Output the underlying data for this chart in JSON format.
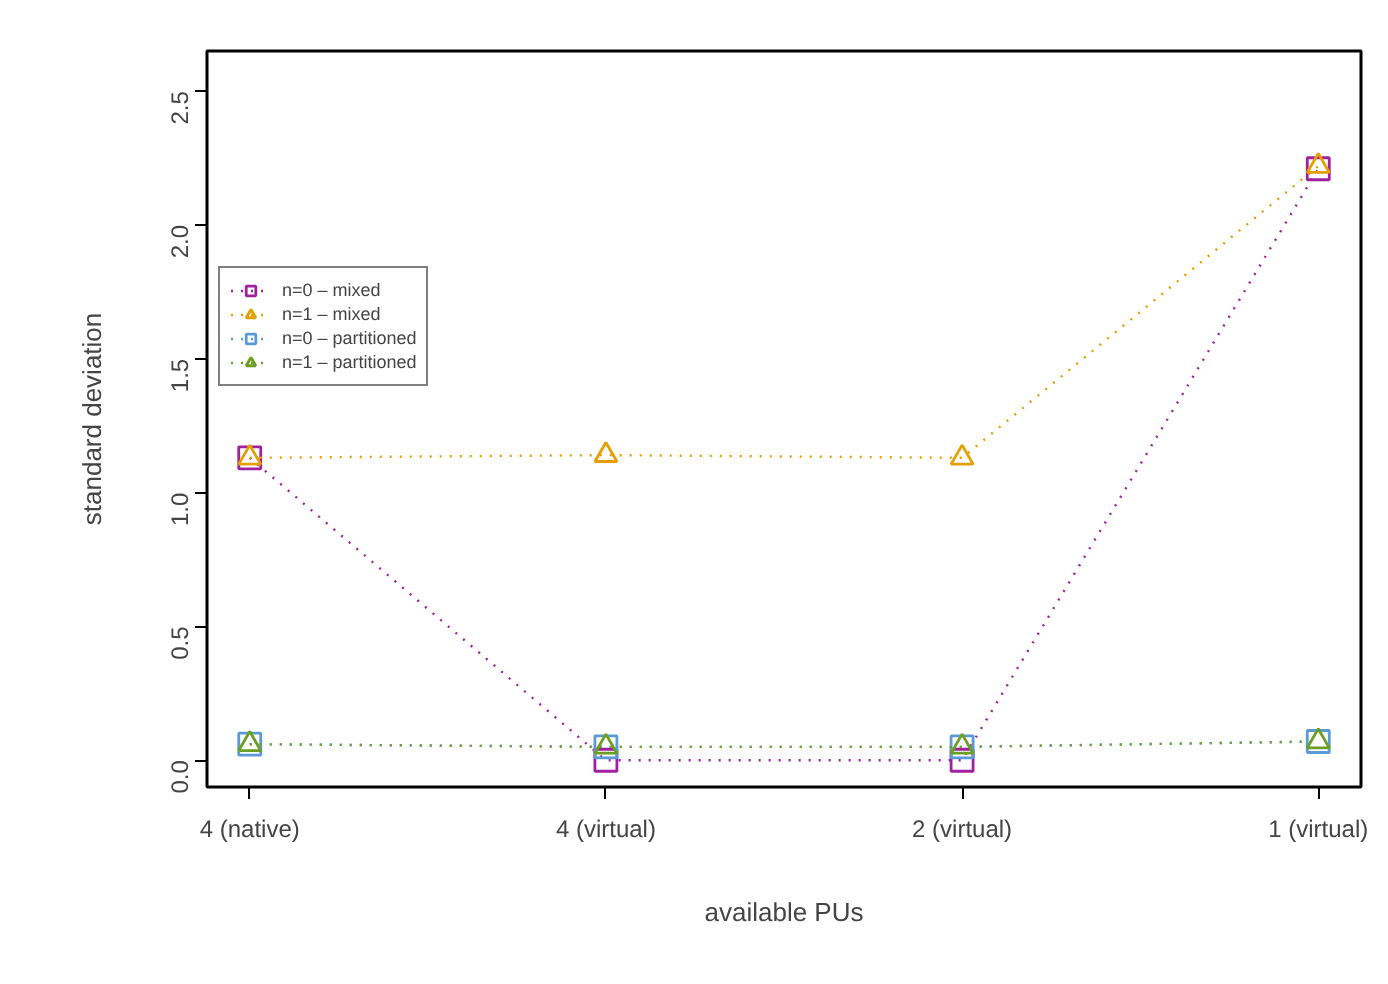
{
  "chart_data": {
    "type": "line",
    "xlabel": "available PUs",
    "ylabel": "standard deviation",
    "categories": [
      "4 (native)",
      "4 (virtual)",
      "2 (virtual)",
      "1 (virtual)"
    ],
    "ylim": [
      -0.1,
      2.65
    ],
    "yticks": [
      {
        "value": 0,
        "label": "0.0"
      },
      0.5,
      {
        "value": 1,
        "label": "1.0"
      },
      1.5,
      {
        "value": 2,
        "label": "2.0"
      },
      2.5
    ],
    "series": [
      {
        "name": "n=0 – mixed",
        "color": "#a0209f",
        "marker": "square",
        "values": [
          1.13,
          0.0,
          0.0,
          2.21
        ]
      },
      {
        "name": "n=1 – mixed",
        "color": "#e69f00",
        "marker": "triangle",
        "values": [
          1.13,
          1.14,
          1.13,
          2.22
        ]
      },
      {
        "name": "n=0 – partitioned",
        "color": "#5b9bd5",
        "marker": "square",
        "values": [
          0.06,
          0.05,
          0.05,
          0.07
        ]
      },
      {
        "name": "n=1 – partitioned",
        "color": "#6b9e23",
        "marker": "triangle",
        "values": [
          0.06,
          0.05,
          0.05,
          0.07
        ]
      }
    ],
    "line_style": "dotted",
    "grid": false,
    "legend": "top left"
  }
}
